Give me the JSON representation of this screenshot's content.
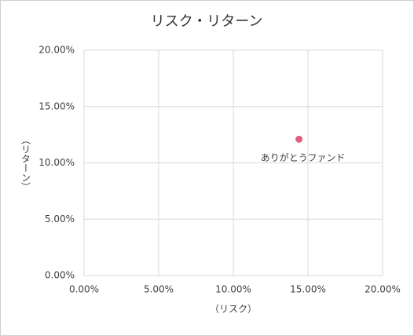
{
  "chart_data": {
    "type": "scatter",
    "title": "リスク・リターン",
    "x_label": "（リスク）",
    "y_label": "（リターン）",
    "series": [
      {
        "name": "ありがとうファンド",
        "color": "#e0617f",
        "x": [
          14.4
        ],
        "values": [
          12.1
        ]
      }
    ],
    "xlim": [
      0,
      20
    ],
    "xticks": [
      {
        "value": 0,
        "label": "0.00%"
      },
      {
        "value": 5,
        "label": "5.00%"
      },
      {
        "value": 10,
        "label": "10.00%"
      },
      {
        "value": 15,
        "label": "15.00%"
      },
      {
        "value": 20,
        "label": "20.00%"
      }
    ],
    "ylim": [
      0,
      20
    ],
    "yticks": [
      {
        "value": 0,
        "label": "0.00%"
      },
      {
        "value": 5,
        "label": "5.00%"
      },
      {
        "value": 10,
        "label": "10.00%"
      },
      {
        "value": 15,
        "label": "15.00%"
      },
      {
        "value": 20,
        "label": "20.00%"
      }
    ],
    "grid": true
  }
}
